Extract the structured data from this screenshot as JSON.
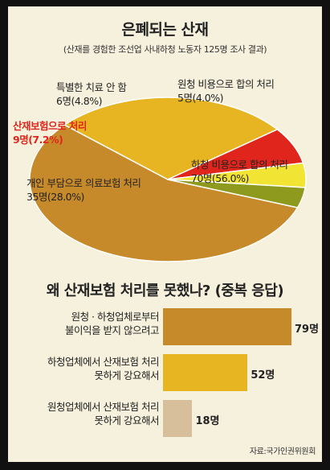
{
  "chart_data": [
    {
      "type": "pie",
      "title": "은폐되는 산재",
      "subtitle": "(산재를 경험한 조선업 사내하청 노동자 125명 조사 결과)",
      "slices": [
        {
          "name": "하청 비용으로 합의 처리",
          "count_label": "70명",
          "pct_label": "(56.0%)",
          "count": 70,
          "percent": 56.0,
          "color": "#c68a2a"
        },
        {
          "name": "개인 부담으로 의료보험 처리",
          "count_label": "35명",
          "pct_label": "(28.0%)",
          "count": 35,
          "percent": 28.0,
          "color": "#e6b521"
        },
        {
          "name": "산재보험으로 처리",
          "count_label": "9명",
          "pct_label": "(7.2%)",
          "count": 9,
          "percent": 7.2,
          "color": "#e0261c",
          "label_color": "#e0261c"
        },
        {
          "name": "특별한 치료 안 함",
          "count_label": "6명",
          "pct_label": "(4.8%)",
          "count": 6,
          "percent": 4.8,
          "color": "#f2e433"
        },
        {
          "name": "원청 비용으로 합의 처리",
          "count_label": "5명",
          "pct_label": "(4.0%)",
          "count": 5,
          "percent": 4.0,
          "color": "#8e9a1e"
        }
      ]
    },
    {
      "type": "bar",
      "orientation": "horizontal",
      "title": "왜 산재보험 처리를 못했나? (중복 응답)",
      "categories": [
        [
          "원청 · 하청업체로부터",
          "불이익을 받지 않으려고"
        ],
        [
          "하청업체에서 산재보험 처리",
          "못하게 강요해서"
        ],
        [
          "원청업체에서 산재보험 처리",
          "못하게 강요해서"
        ]
      ],
      "values": [
        79,
        52,
        18
      ],
      "value_labels": [
        "79명",
        "52명",
        "18명"
      ],
      "colors": [
        "#c68a2a",
        "#e6b521",
        "#d8bf9c"
      ],
      "xlim": [
        0,
        79
      ]
    }
  ],
  "source": "자료:국가인권위원회"
}
